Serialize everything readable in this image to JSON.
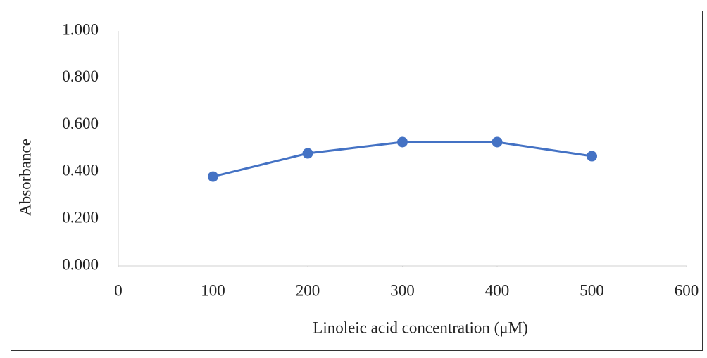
{
  "chart_data": {
    "type": "line",
    "xlabel": "Linoleic acid concentration (μM)",
    "ylabel": "Absorbance",
    "x": [
      100,
      200,
      300,
      400,
      500
    ],
    "series": [
      {
        "color": "#4472c4",
        "values": [
          0.38,
          0.479,
          0.527,
          0.527,
          0.467
        ]
      }
    ],
    "xlim": [
      0,
      600
    ],
    "xticks": [
      0,
      100,
      200,
      300,
      400,
      500,
      600
    ],
    "ylim": [
      0,
      1
    ],
    "yticks": [
      {
        "value": 0,
        "label": "0.000"
      },
      {
        "value": 0.2,
        "label": "0.200"
      },
      {
        "value": 0.4,
        "label": "0.400"
      },
      {
        "value": 0.6,
        "label": "0.600"
      },
      {
        "value": 0.8,
        "label": "0.800"
      },
      {
        "value": 1,
        "label": "1.000"
      }
    ],
    "grid": false
  }
}
